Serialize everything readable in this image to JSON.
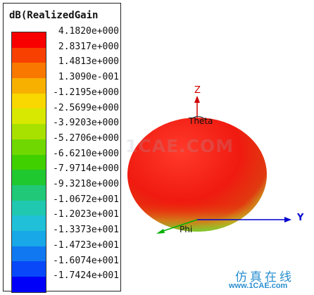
{
  "legend": {
    "title": "dB(RealizedGain",
    "values": [
      "4.1820e+000",
      "2.8317e+000",
      "1.4813e+000",
      "1.3090e-001",
      "-1.2195e+000",
      "-2.5699e+000",
      "-3.9203e+000",
      "-5.2706e+000",
      "-6.6210e+000",
      "-7.9714e+000",
      "-9.3218e+000",
      "-1.0672e+001",
      "-1.2023e+001",
      "-1.3373e+001",
      "-1.4723e+001",
      "-1.6074e+001",
      "-1.7424e+001"
    ],
    "colors": [
      "#f80000",
      "#f84000",
      "#f87800",
      "#f8b000",
      "#f8d800",
      "#d8e800",
      "#a8e000",
      "#70d800",
      "#40d000",
      "#20c830",
      "#20c878",
      "#20c8b0",
      "#20c0d8",
      "#18a8e8",
      "#1078f0",
      "#0848f8",
      "#0000f8"
    ]
  },
  "axes": {
    "z_label": "Z",
    "theta_label": "Theta",
    "y_label": "Y",
    "phi_label": "Phi",
    "z_color": "#d00000",
    "y_color": "#0000d0",
    "x_color": "#00b000"
  },
  "watermark": "1CAE.COM",
  "brand": {
    "cn": "仿真在线",
    "url": "www.1CAE.com"
  }
}
